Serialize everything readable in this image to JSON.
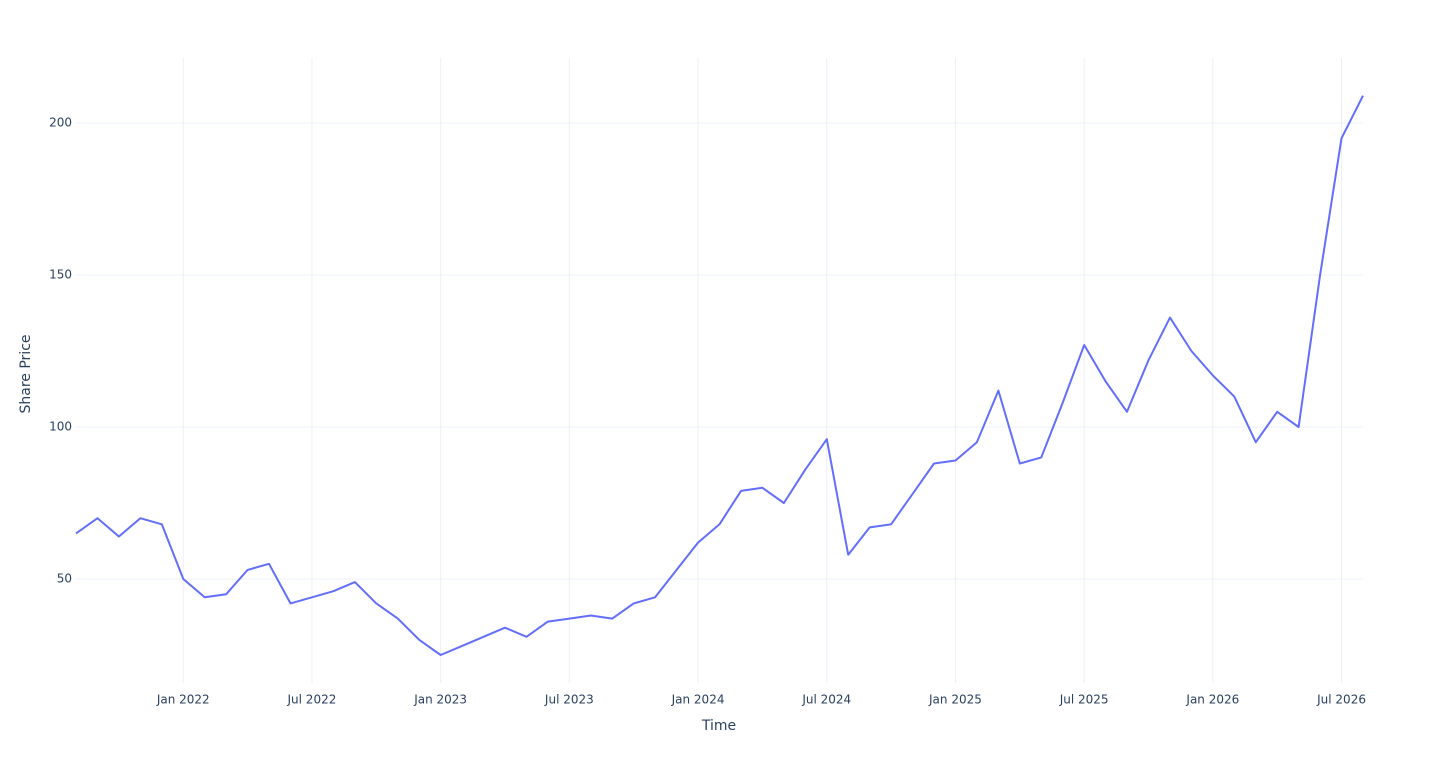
{
  "chart_data": {
    "type": "line",
    "xlabel": "Time",
    "ylabel": "Share Price",
    "x": [
      "2021-08",
      "2021-09",
      "2021-10",
      "2021-11",
      "2021-12",
      "2022-01",
      "2022-02",
      "2022-03",
      "2022-04",
      "2022-05",
      "2022-06",
      "2022-07",
      "2022-08",
      "2022-09",
      "2022-10",
      "2022-11",
      "2022-12",
      "2023-01",
      "2023-02",
      "2023-03",
      "2023-04",
      "2023-05",
      "2023-06",
      "2023-07",
      "2023-08",
      "2023-09",
      "2023-10",
      "2023-11",
      "2023-12",
      "2024-01",
      "2024-02",
      "2024-03",
      "2024-04",
      "2024-05",
      "2024-06",
      "2024-07",
      "2024-08",
      "2024-09",
      "2024-10",
      "2024-11",
      "2024-12",
      "2025-01",
      "2025-02",
      "2025-03",
      "2025-04",
      "2025-05",
      "2025-06",
      "2025-07",
      "2025-08",
      "2025-09",
      "2025-10",
      "2025-11",
      "2025-12",
      "2026-01",
      "2026-02",
      "2026-03",
      "2026-04",
      "2026-05",
      "2026-06",
      "2026-07",
      "2026-08"
    ],
    "series": [
      {
        "name": "Share Price",
        "color": "#636efa",
        "values": [
          65,
          70,
          64,
          70,
          68,
          50,
          44,
          45,
          53,
          55,
          42,
          44,
          46,
          49,
          42,
          37,
          30,
          25,
          28,
          31,
          34,
          31,
          36,
          37,
          38,
          37,
          42,
          44,
          53,
          62,
          68,
          79,
          80,
          75,
          86,
          96,
          58,
          67,
          68,
          78,
          88,
          89,
          95,
          112,
          88,
          90,
          108,
          127,
          115,
          105,
          122,
          136,
          125,
          117,
          110,
          95,
          105,
          100,
          150,
          195,
          209
        ]
      }
    ],
    "xlim": [
      "2021-08",
      "2026-08"
    ],
    "xticks": [
      {
        "value": "2022-01",
        "label": "Jan 2022"
      },
      {
        "value": "2022-07",
        "label": "Jul 2022"
      },
      {
        "value": "2023-01",
        "label": "Jan 2023"
      },
      {
        "value": "2023-07",
        "label": "Jul 2023"
      },
      {
        "value": "2024-01",
        "label": "Jan 2024"
      },
      {
        "value": "2024-07",
        "label": "Jul 2024"
      },
      {
        "value": "2025-01",
        "label": "Jan 2025"
      },
      {
        "value": "2025-07",
        "label": "Jul 2025"
      },
      {
        "value": "2026-01",
        "label": "Jan 2026"
      },
      {
        "value": "2026-07",
        "label": "Jul 2026"
      }
    ],
    "ylim": [
      15.8,
      221.4
    ],
    "yticks": [
      50,
      100,
      150,
      200
    ],
    "grid": true
  }
}
